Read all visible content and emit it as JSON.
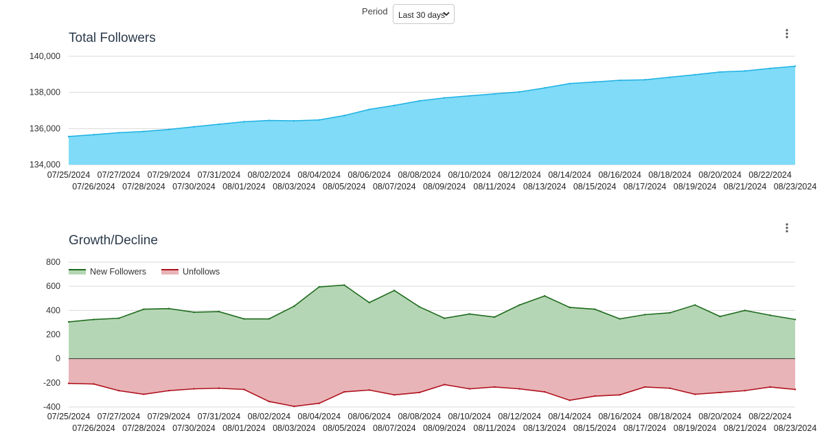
{
  "period": {
    "label": "Period",
    "selected": "Last 30 days"
  },
  "colors": {
    "followers_fill": "#7fdbf7",
    "followers_line": "#1bb0e3",
    "growth_fill": "#b5d6b4",
    "growth_line": "#1e6b1e",
    "decline_fill": "#e8b4b7",
    "decline_line": "#b0101c",
    "grid": "#d9d9d9",
    "zero_line": "#333333"
  },
  "chart_data": [
    {
      "type": "area",
      "title": "Total Followers",
      "x": [
        "07/25/2024",
        "07/26/2024",
        "07/27/2024",
        "07/28/2024",
        "07/29/2024",
        "07/30/2024",
        "07/31/2024",
        "08/01/2024",
        "08/02/2024",
        "08/03/2024",
        "08/04/2024",
        "08/05/2024",
        "08/06/2024",
        "08/07/2024",
        "08/08/2024",
        "08/09/2024",
        "08/10/2024",
        "08/11/2024",
        "08/12/2024",
        "08/13/2024",
        "08/14/2024",
        "08/15/2024",
        "08/16/2024",
        "08/17/2024",
        "08/18/2024",
        "08/19/2024",
        "08/20/2024",
        "08/21/2024",
        "08/22/2024",
        "08/23/2024"
      ],
      "series": [
        {
          "values": [
            135560,
            135660,
            135770,
            135840,
            135950,
            136100,
            136240,
            136380,
            136450,
            136430,
            136480,
            136720,
            137060,
            137280,
            137530,
            137700,
            137810,
            137920,
            138030,
            138250,
            138490,
            138580,
            138670,
            138700,
            138840,
            138980,
            139130,
            139190,
            139330,
            139450
          ]
        }
      ],
      "ylim": [
        134000,
        140000
      ],
      "yticks": [
        134000,
        136000,
        138000,
        140000
      ],
      "ytick_labels": [
        "134,000",
        "136,000",
        "138,000",
        "140,000"
      ],
      "grid": true
    },
    {
      "type": "area",
      "title": "Growth/Decline",
      "x": [
        "07/25/2024",
        "07/26/2024",
        "07/27/2024",
        "07/28/2024",
        "07/29/2024",
        "07/30/2024",
        "07/31/2024",
        "08/01/2024",
        "08/02/2024",
        "08/03/2024",
        "08/04/2024",
        "08/05/2024",
        "08/06/2024",
        "08/07/2024",
        "08/08/2024",
        "08/09/2024",
        "08/10/2024",
        "08/11/2024",
        "08/12/2024",
        "08/13/2024",
        "08/14/2024",
        "08/15/2024",
        "08/16/2024",
        "08/17/2024",
        "08/18/2024",
        "08/19/2024",
        "08/20/2024",
        "08/21/2024",
        "08/22/2024",
        "08/23/2024"
      ],
      "series": [
        {
          "name": "New Followers",
          "values": [
            305,
            325,
            335,
            410,
            415,
            385,
            390,
            330,
            330,
            435,
            595,
            610,
            465,
            565,
            430,
            335,
            370,
            345,
            445,
            520,
            425,
            410,
            330,
            365,
            380,
            445,
            350,
            400,
            360,
            325
          ]
        },
        {
          "name": "Unfollows",
          "values": [
            -205,
            -210,
            -265,
            -295,
            -265,
            -250,
            -245,
            -255,
            -355,
            -395,
            -370,
            -275,
            -260,
            -300,
            -280,
            -215,
            -250,
            -235,
            -250,
            -275,
            -345,
            -310,
            -300,
            -235,
            -245,
            -295,
            -280,
            -265,
            -235,
            -255
          ]
        }
      ],
      "ylim": [
        -400,
        800
      ],
      "yticks": [
        -400,
        -200,
        0,
        200,
        400,
        600,
        800
      ],
      "ytick_labels": [
        "-400",
        "-200",
        "0",
        "200",
        "400",
        "600",
        "800"
      ],
      "legend": "top-left",
      "grid": true
    }
  ]
}
